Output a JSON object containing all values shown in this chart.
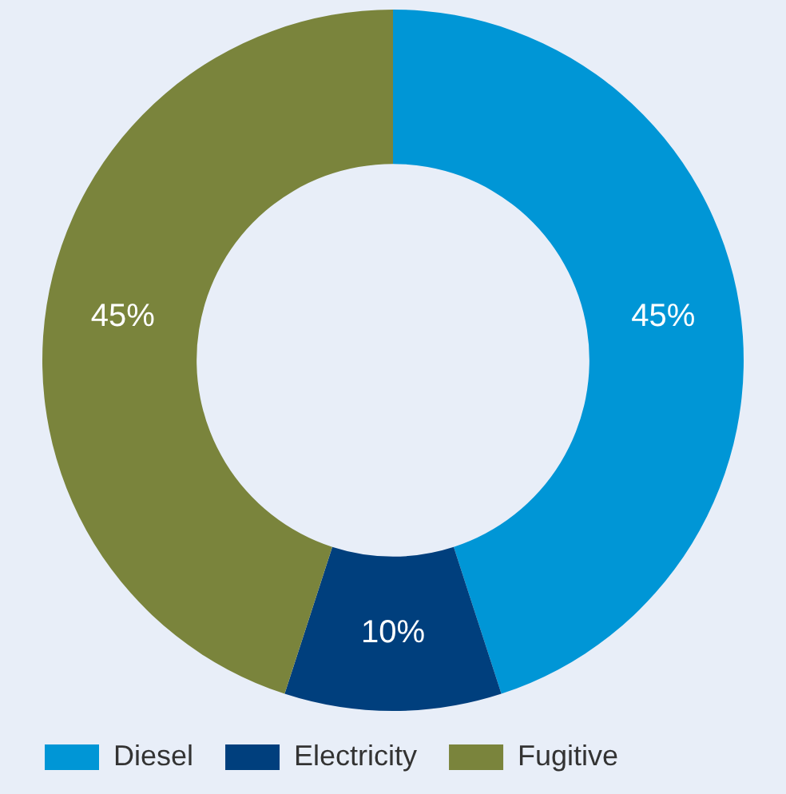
{
  "chart_data": {
    "type": "donut",
    "categories": [
      "Diesel",
      "Electricity",
      "Fugitive"
    ],
    "values": [
      45,
      10,
      45
    ],
    "colors": [
      "#0096d6",
      "#003f7d",
      "#7a843c"
    ],
    "value_labels": [
      "45%",
      "10%",
      "45%"
    ],
    "legend": "bottom"
  }
}
